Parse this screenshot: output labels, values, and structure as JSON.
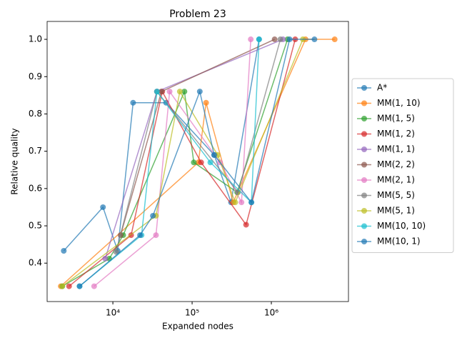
{
  "chart_data": {
    "type": "line",
    "title": "Problem 23",
    "x_label": "Expanded nodes",
    "y_label": "Relative quality",
    "xscale": "log",
    "xlim": [
      1480,
      9400000
    ],
    "ylim": [
      0.297,
      1.048
    ],
    "xticks": [
      {
        "value": 10000,
        "label": "10⁴"
      },
      {
        "value": 100000,
        "label": "10⁵"
      },
      {
        "value": 1000000,
        "label": "10⁶"
      }
    ],
    "yticks": [
      0.4,
      0.5,
      0.6,
      0.7,
      0.8,
      0.9,
      {
        "value": 1,
        "label": "1.0"
      }
    ],
    "legend": "right",
    "series": [
      {
        "name": "A*",
        "color": "#1f77b4",
        "x": [
          2400,
          7500,
          11500,
          18000,
          47000,
          190000,
          310000,
          700000
        ],
        "values": [
          0.433,
          0.55,
          0.433,
          0.83,
          0.83,
          0.69,
          0.563,
          1.0
        ]
      },
      {
        "name": "MM(1, 10)",
        "color": "#ff7f0e",
        "x": [
          2200,
          120000,
          150000,
          330000,
          2700000,
          6300000
        ],
        "values": [
          0.338,
          0.67,
          0.83,
          0.563,
          1.0,
          1.0
        ]
      },
      {
        "name": "MM(1, 5)",
        "color": "#2ca02c",
        "x": [
          2300,
          9000,
          13500,
          80000,
          105000,
          370000,
          1600000
        ],
        "values": [
          0.338,
          0.412,
          0.475,
          0.86,
          0.67,
          0.59,
          1.0
        ]
      },
      {
        "name": "MM(1, 2)",
        "color": "#d62728",
        "x": [
          2800,
          17000,
          42000,
          130000,
          480000,
          2000000
        ],
        "values": [
          0.338,
          0.475,
          0.86,
          0.67,
          0.503,
          1.0
        ]
      },
      {
        "name": "MM(1, 1)",
        "color": "#9467bd",
        "x": [
          8000,
          36000,
          1400000
        ],
        "values": [
          0.412,
          0.86,
          1.0
        ]
      },
      {
        "name": "MM(2, 2)",
        "color": "#8c564b",
        "x": [
          12500,
          41000,
          1100000
        ],
        "values": [
          0.475,
          0.86,
          1.0
        ]
      },
      {
        "name": "MM(2, 1)",
        "color": "#e377c2",
        "x": [
          5800,
          35000,
          52000,
          225000,
          420000,
          550000
        ],
        "values": [
          0.338,
          0.475,
          0.86,
          0.67,
          0.563,
          1.0
        ]
      },
      {
        "name": "MM(5, 5)",
        "color": "#7f7f7f",
        "x": [
          11000,
          36000,
          380000,
          1300000
        ],
        "values": [
          0.43,
          0.86,
          0.59,
          1.0
        ]
      },
      {
        "name": "MM(5, 1)",
        "color": "#bcbd22",
        "x": [
          2300,
          35000,
          70000,
          210000,
          350000,
          2500000
        ],
        "values": [
          0.338,
          0.527,
          0.86,
          0.69,
          0.563,
          1.0
        ]
      },
      {
        "name": "MM(10, 10)",
        "color": "#17becf",
        "x": [
          3800,
          23000,
          36000,
          170000,
          560000,
          700000
        ],
        "values": [
          0.338,
          0.475,
          0.86,
          0.67,
          0.563,
          1.0
        ]
      },
      {
        "name": "MM(10, 1)",
        "color": "#1f77b4",
        "x": [
          3800,
          22000,
          32000,
          125000,
          190000,
          560000,
          1700000,
          3500000
        ],
        "values": [
          0.338,
          0.475,
          0.527,
          0.86,
          0.69,
          0.563,
          1.0,
          1.0
        ]
      }
    ]
  }
}
